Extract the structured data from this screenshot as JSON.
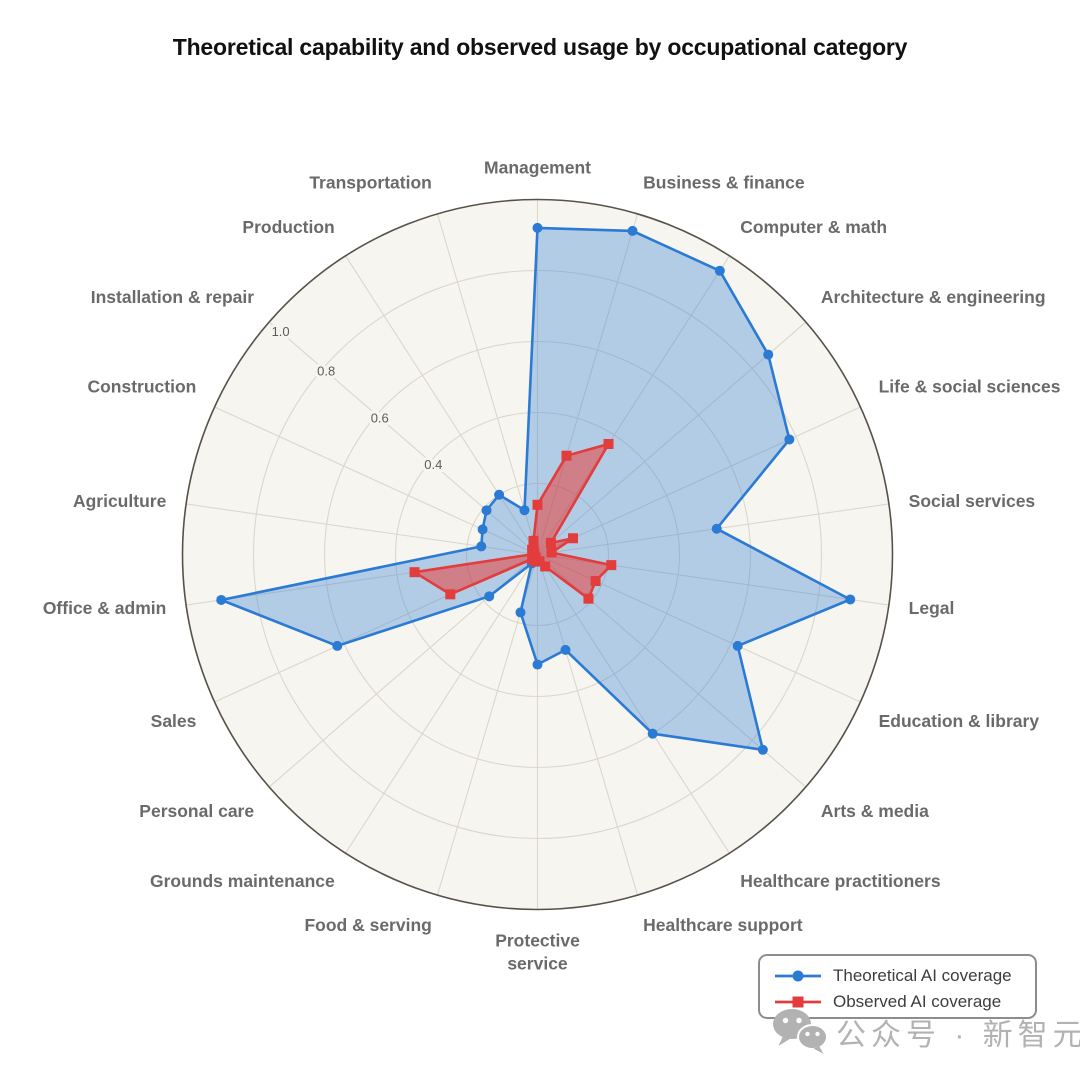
{
  "title": "Theoretical capability and observed usage by occupational category",
  "legend": {
    "items": [
      {
        "label": "Theoretical AI coverage",
        "color": "#2b7ad4",
        "marker": "circle"
      },
      {
        "label": "Observed AI coverage",
        "color": "#e23c3c",
        "marker": "square"
      }
    ]
  },
  "watermark": {
    "text": "公众号 · 新智元",
    "icon": "wechat-icon",
    "color": "#b2b2b2"
  },
  "colors": {
    "plot_background": "#f7f5ef",
    "grid": "#dbd7cb",
    "outer_ring": "#56524a",
    "tick_label": "#5c5c5c",
    "category_label": "#6a6a6a",
    "title": "#111111",
    "series_blue": "#2b7ad4",
    "series_blue_fill": "rgba(43,122,212,0.33)",
    "series_red": "#e23c3c",
    "series_red_fill": "rgba(232,62,58,0.55)"
  },
  "chart_data": {
    "type": "radar",
    "title": "Theoretical capability and observed usage by occupational category",
    "categories": [
      "Management",
      "Business & finance",
      "Computer & math",
      "Architecture & engineering",
      "Life & social sciences",
      "Social services",
      "Legal",
      "Education & library",
      "Arts & media",
      "Healthcare practitioners",
      "Healthcare support",
      "Protective service",
      "Food & serving",
      "Grounds maintenance",
      "Personal care",
      "Sales",
      "Office & admin",
      "Agriculture",
      "Construction",
      "Installation & repair",
      "Production",
      "Transportation"
    ],
    "series": [
      {
        "name": "Theoretical AI coverage",
        "marker": "circle",
        "color": "#2b7ad4",
        "fill": "rgba(43,122,212,0.33)",
        "values": [
          0.92,
          0.95,
          0.95,
          0.86,
          0.78,
          0.51,
          0.89,
          0.62,
          0.84,
          0.6,
          0.28,
          0.31,
          0.17,
          0.03,
          0.18,
          0.62,
          0.9,
          0.16,
          0.17,
          0.19,
          0.2,
          0.13
        ]
      },
      {
        "name": "Observed AI coverage",
        "marker": "square",
        "color": "#e23c3c",
        "fill": "rgba(232,62,58,0.55)",
        "values": [
          0.14,
          0.29,
          0.37,
          0.05,
          0.11,
          0.04,
          0.21,
          0.18,
          0.19,
          0.04,
          0.02,
          0.02,
          0.02,
          0.01,
          0.02,
          0.27,
          0.35,
          0.01,
          0.01,
          0.02,
          0.02,
          0.04
        ]
      }
    ],
    "radial_ticks": [
      "0.4",
      "0.6",
      "0.8",
      "1.0"
    ],
    "grid_circles": [
      0.2,
      0.4,
      0.6,
      0.8,
      1.0
    ],
    "rlim": [
      0,
      1.0
    ],
    "grid": true,
    "direction": "clockwise-from-top",
    "radial_label_angle_deg": 311,
    "legend_position": "lower right"
  }
}
